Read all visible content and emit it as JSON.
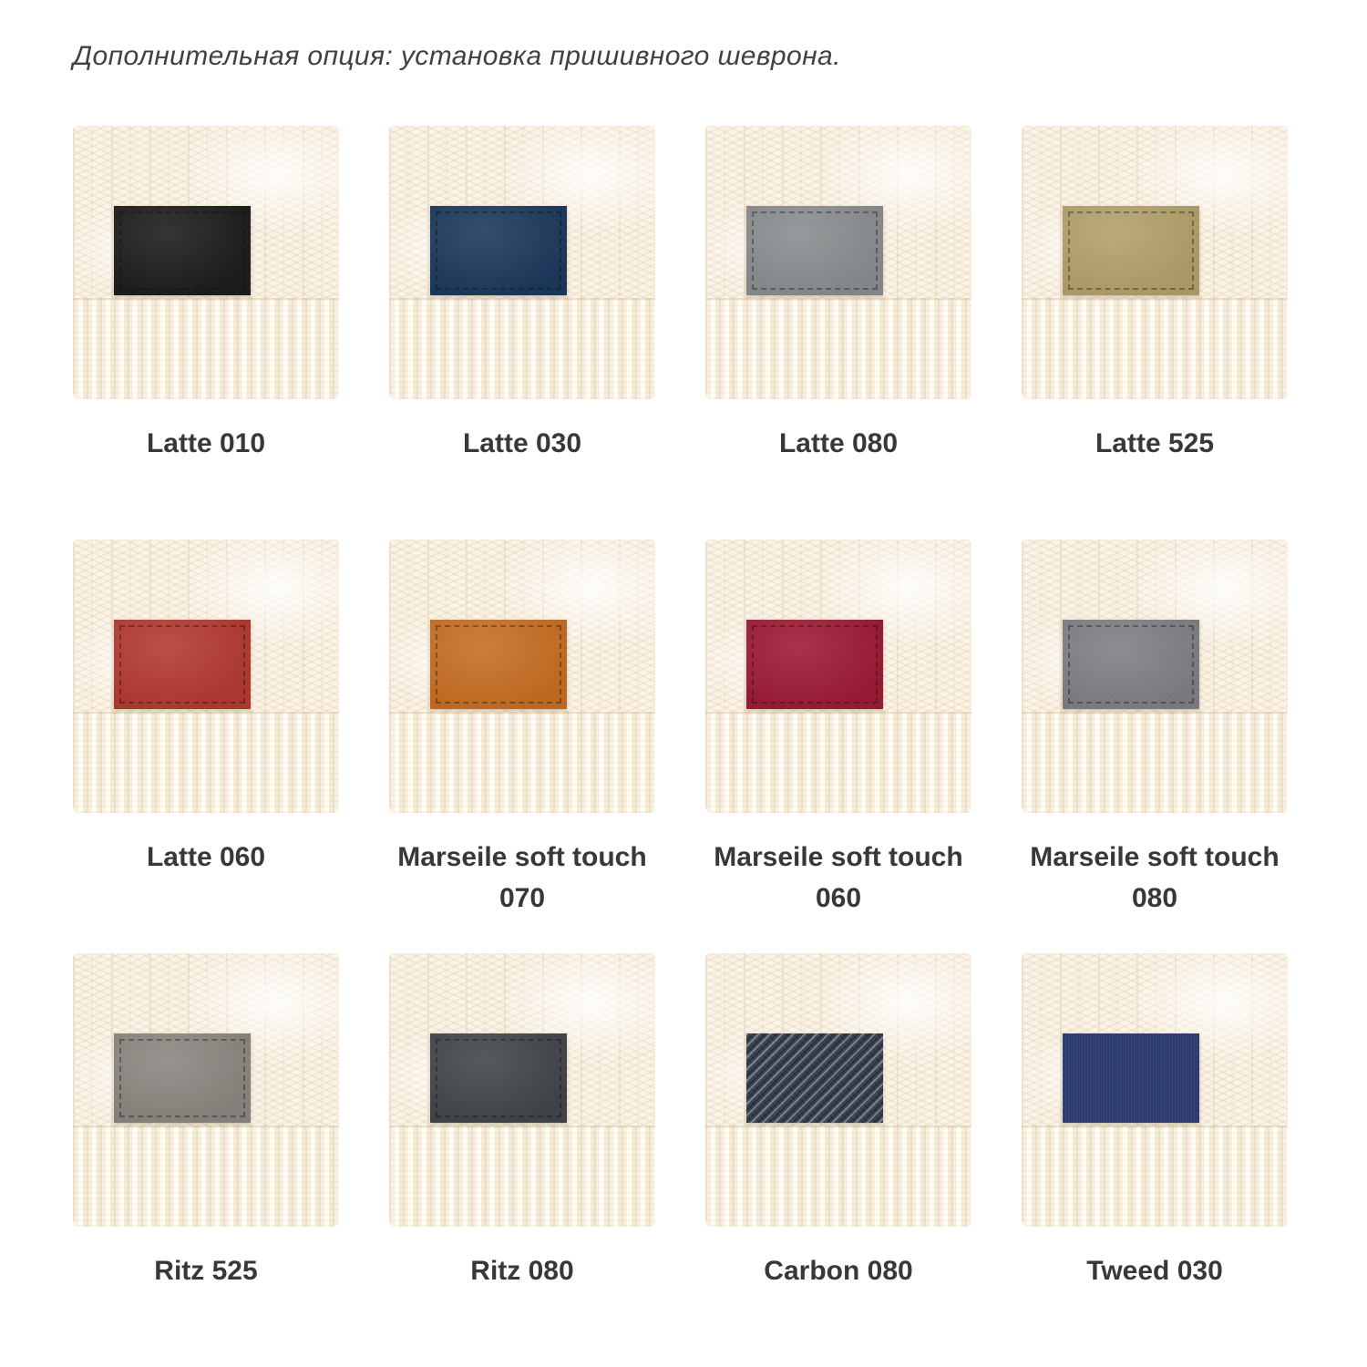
{
  "header": {
    "note": "Дополнительная опция: установка пришивного шеврона."
  },
  "colors": {
    "page_background": "#ffffff",
    "swatch_base": "#faf3e6",
    "header_text": "#414141",
    "label_text": "#383838"
  },
  "items": [
    {
      "label": "Latte 010",
      "patch_color": "#1e1e1e",
      "stitch": true,
      "texture": "suede"
    },
    {
      "label": "Latte 030",
      "patch_color": "#1d3a5e",
      "stitch": true,
      "texture": "suede"
    },
    {
      "label": "Latte 080",
      "patch_color": "#8b8e90",
      "stitch": true,
      "texture": "suede"
    },
    {
      "label": "Latte 525",
      "patch_color": "#b4a16c",
      "stitch": true,
      "texture": "suede"
    },
    {
      "label": "Latte 060",
      "patch_color": "#b43b32",
      "stitch": true,
      "texture": "suede"
    },
    {
      "label": "Marseile soft touch 070",
      "patch_color": "#c76f24",
      "stitch": true,
      "texture": "suede"
    },
    {
      "label": "Marseile soft touch 060",
      "patch_color": "#9e1c36",
      "stitch": true,
      "texture": "suede"
    },
    {
      "label": "Marseile soft touch 080",
      "patch_color": "#7f8184",
      "stitch": true,
      "texture": "leather"
    },
    {
      "label": "Ritz 525",
      "patch_color": "#8b8781",
      "stitch": true,
      "texture": "suede"
    },
    {
      "label": "Ritz 080",
      "patch_color": "#43474b",
      "stitch": true,
      "texture": "suede"
    },
    {
      "label": "Carbon 080",
      "patch_color": "#3e4654",
      "stitch": false,
      "texture": "carbon"
    },
    {
      "label": "Tweed 030",
      "patch_color": "#2e3d71",
      "stitch": false,
      "texture": "tweed"
    }
  ]
}
